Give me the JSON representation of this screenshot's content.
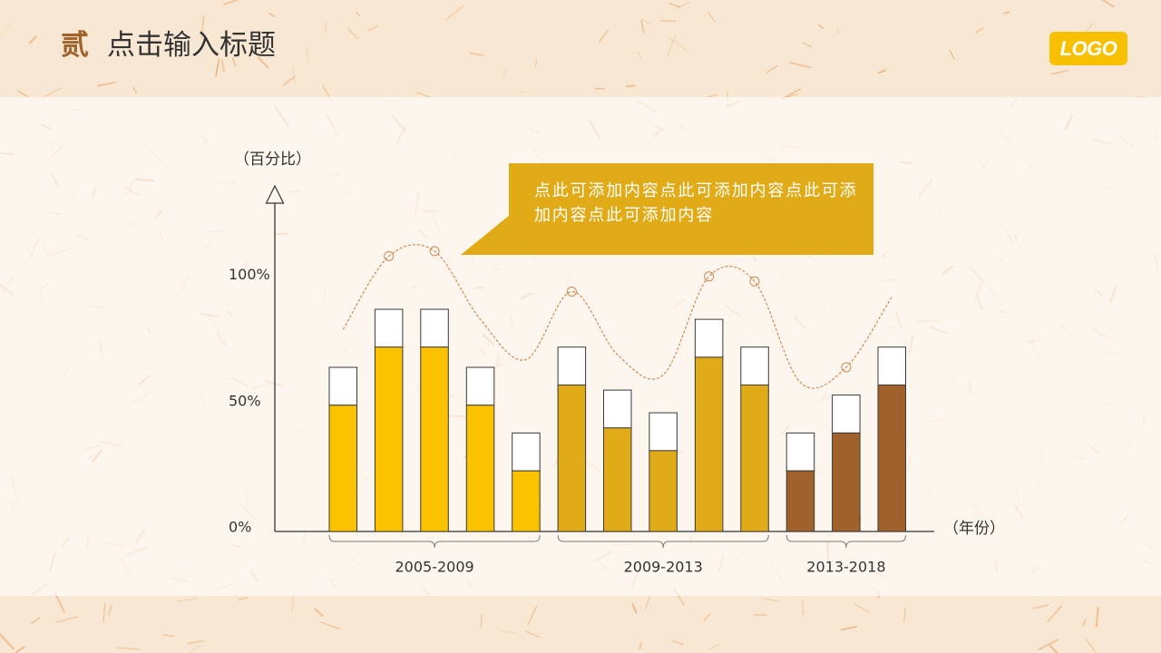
{
  "header": {
    "number": "贰",
    "title": "点击输入标题",
    "number_color": "#a0612a"
  },
  "logo": {
    "text": "LOGO",
    "color": "#f7c000"
  },
  "callout": {
    "text": "点此可添加内容点此可添加内容点此可添加内容点此可添加内容",
    "color": "#e1aa17"
  },
  "chart_data": {
    "type": "bar",
    "stacked": true,
    "ylabel": "（百分比）",
    "xlabel": "（年份）",
    "ylim": [
      0,
      130
    ],
    "yticks": [
      {
        "value": 100,
        "label": "100%"
      },
      {
        "value": 50,
        "label": "50%"
      },
      {
        "value": 0,
        "label": "0%"
      }
    ],
    "upper_color": "#ffffff",
    "groups": [
      {
        "label": "2005-2009",
        "color": "#fbc200",
        "values": [
          50,
          73,
          73,
          50,
          24
        ],
        "upper": [
          15,
          15,
          15,
          15,
          15
        ]
      },
      {
        "label": "2009-2013",
        "color": "#e1aa17",
        "values": [
          58,
          41,
          32,
          69,
          58
        ],
        "upper": [
          15,
          15,
          15,
          15,
          15
        ]
      },
      {
        "label": "2013-2018",
        "color": "#a1612a",
        "values": [
          24,
          39,
          58
        ],
        "upper": [
          15,
          15,
          15
        ]
      }
    ],
    "curve": {
      "type": "line",
      "style": "dashed",
      "color": "#cf8a4f",
      "values": [
        80,
        109,
        111,
        84,
        68,
        95,
        70,
        62,
        101,
        99,
        59,
        65,
        93
      ],
      "markers": [
        false,
        true,
        true,
        false,
        false,
        true,
        false,
        false,
        true,
        true,
        false,
        true,
        false
      ]
    }
  }
}
